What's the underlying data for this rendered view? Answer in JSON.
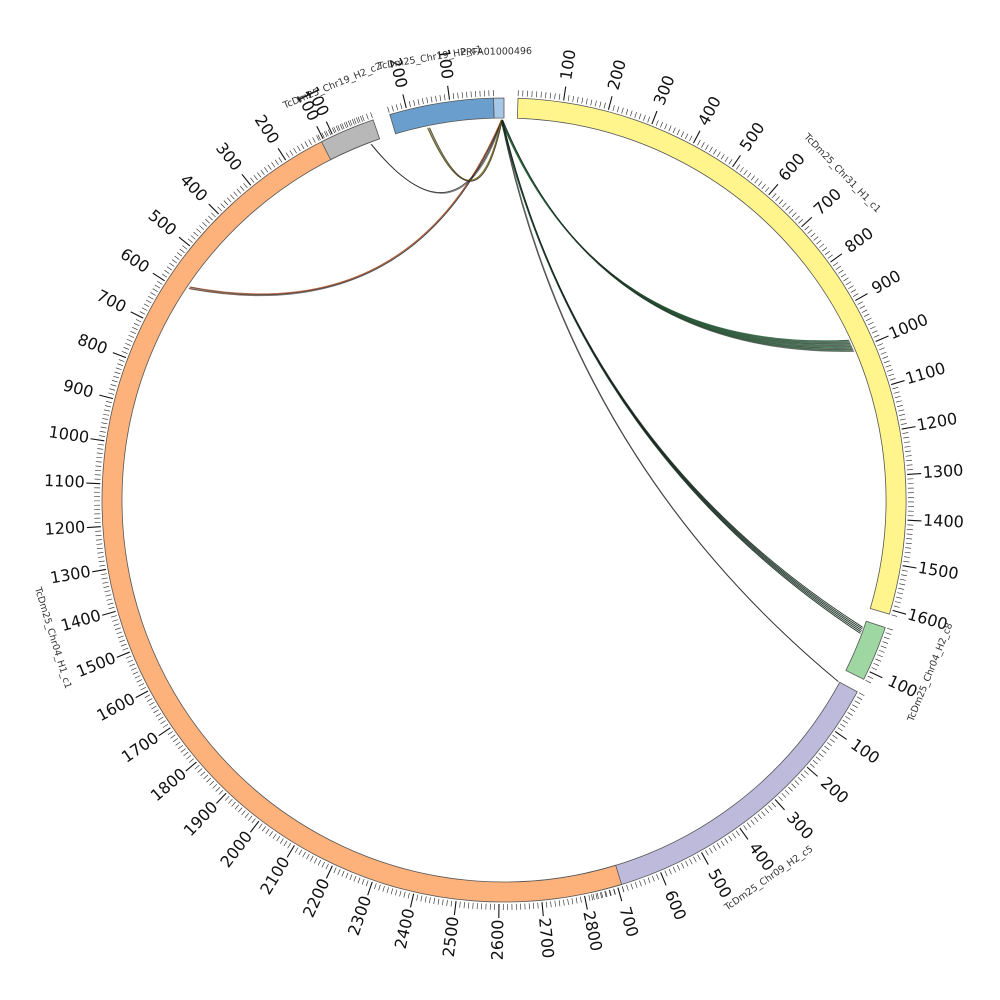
{
  "diagram": {
    "type": "circos",
    "segments": [
      {
        "id": "PRFA01000496",
        "name": "PRFA01000496",
        "color": "#a6c8e6",
        "length": 7,
        "start_deg": -1.5,
        "end_deg": 0.0,
        "label_deg": -1.0,
        "ticks": []
      },
      {
        "id": "chr31",
        "name": "TcDm25_Chr31_H1_c1",
        "color": "#fff58c",
        "length": 1610,
        "start_deg": 2.0,
        "end_deg": 106.5,
        "label_deg": 46.0,
        "ticks": [
          100,
          200,
          300,
          400,
          500,
          600,
          700,
          800,
          900,
          1000,
          1100,
          1200,
          1300,
          1400,
          1500,
          1600
        ]
      },
      {
        "id": "chr04h2",
        "name": "TcDm25_Chr04_H2_c8",
        "color": "#9ed7a1",
        "length": 120,
        "start_deg": 108.5,
        "end_deg": 116.5,
        "label_deg": 112.0,
        "ticks": [
          100
        ]
      },
      {
        "id": "chr09",
        "name": "TcDm25_Chr09_H2_c5",
        "color": "#bebadc",
        "length": 760,
        "start_deg": 118.5,
        "end_deg": 167.5,
        "label_deg": 145.0,
        "ticks": [
          100,
          200,
          300,
          400,
          500,
          600,
          700
        ]
      },
      {
        "id": "chr04h1",
        "name": "TcDm25_Chr04_H1_c1",
        "color": "#fdb27c",
        "length": 2890,
        "start_deg": 163.0,
        "end_deg": 339.5,
        "label_deg": 253.0,
        "direction": -1,
        "ticks": [
          100,
          200,
          300,
          400,
          500,
          600,
          700,
          800,
          900,
          1000,
          1100,
          1200,
          1300,
          1400,
          1500,
          1600,
          1700,
          1800,
          1900,
          2000,
          2100,
          2200,
          2300,
          2400,
          2500,
          2600,
          2700,
          2800
        ]
      },
      {
        "id": "chr19c2",
        "name": "TcDm25_Chr19_H2_c2",
        "color": "#b8b8b8",
        "length": 130,
        "start_deg": 333.0,
        "end_deg": 341.0,
        "label_deg": 337.5,
        "direction": -1,
        "ticks": [
          100
        ]
      },
      {
        "id": "chr19c1",
        "name": "TcDm25_Chr19_H2_c1",
        "color": "#6a9ecc",
        "length": 240,
        "start_deg": 343.5,
        "end_deg": 358.5,
        "label_deg": 350.5,
        "direction": -1,
        "ticks": [
          100,
          200
        ]
      }
    ],
    "links": [
      {
        "from_deg": -0.4,
        "to_deg": 66.0,
        "color": "#2b6a3f",
        "count": 8
      },
      {
        "from_deg": -0.4,
        "to_deg": 110.0,
        "color": "#20533a",
        "count": 5
      },
      {
        "from_deg": -0.4,
        "to_deg": 118.5,
        "color": "#2d2d2d",
        "count": 1
      },
      {
        "from_deg": -0.4,
        "to_deg": 304.0,
        "color": "#b0532a",
        "count": 2
      },
      {
        "from_deg": -0.4,
        "to_deg": 339.5,
        "color": "#222222",
        "count": 1
      },
      {
        "from_deg": -0.4,
        "to_deg": 348.5,
        "color": "#7a6a10",
        "count": 2
      }
    ]
  }
}
